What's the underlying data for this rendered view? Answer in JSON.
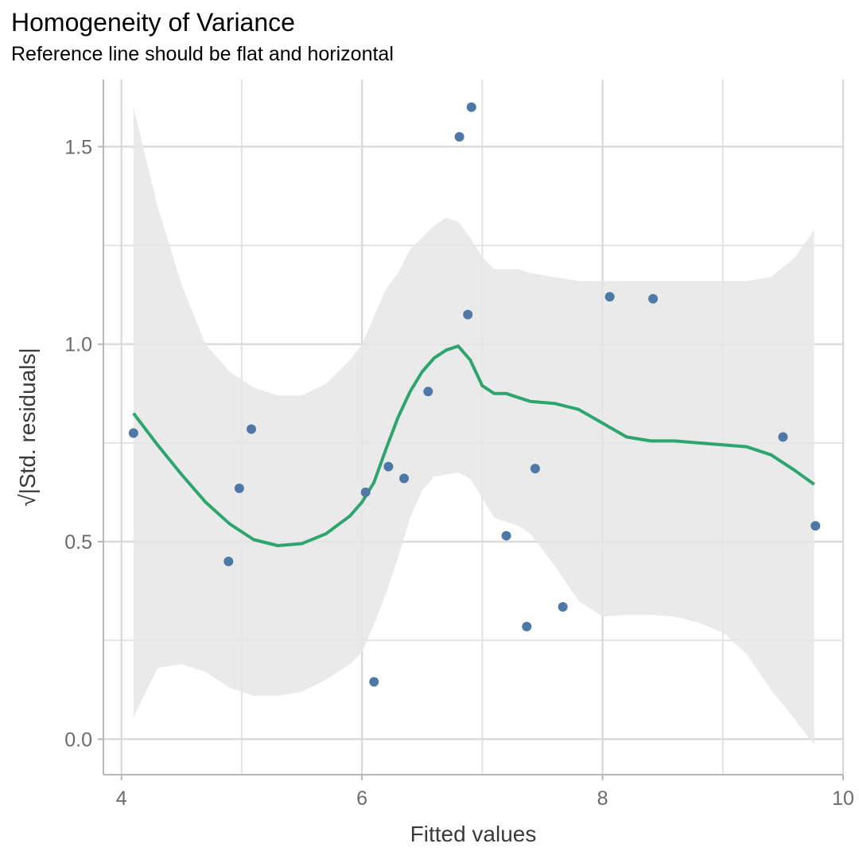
{
  "header": {
    "title": "Homogeneity of Variance",
    "subtitle": "Reference line should be flat and horizontal"
  },
  "chart_data": {
    "type": "scatter",
    "title": "Homogeneity of Variance",
    "subtitle": "Reference line should be flat and horizontal",
    "xlabel": "Fitted values",
    "ylabel": "√|Std. residuals|",
    "xlim": [
      3.85,
      10.0
    ],
    "ylim": [
      -0.09,
      1.67
    ],
    "x_ticks": [
      4,
      6,
      8,
      10
    ],
    "x_tick_labels": [
      "4",
      "6",
      "8",
      "10"
    ],
    "y_ticks": [
      0.0,
      0.5,
      1.0,
      1.5
    ],
    "y_tick_labels": [
      "0.0",
      "0.5",
      "1.0",
      "1.5"
    ],
    "x_minor": [
      5,
      7,
      9
    ],
    "y_minor": [
      0.25,
      0.75,
      1.25
    ],
    "grid": true,
    "points": {
      "color": "#4e79a7",
      "x": [
        4.1,
        4.89,
        4.98,
        5.08,
        6.03,
        6.1,
        6.22,
        6.35,
        6.55,
        6.81,
        6.88,
        6.91,
        7.2,
        7.37,
        7.44,
        7.67,
        8.06,
        8.42,
        9.5,
        9.77
      ],
      "y": [
        0.775,
        0.45,
        0.635,
        0.785,
        0.625,
        0.145,
        0.69,
        0.66,
        0.88,
        1.525,
        1.075,
        1.6,
        0.515,
        0.285,
        0.685,
        0.335,
        1.12,
        1.115,
        0.765,
        0.54
      ]
    },
    "smooth": {
      "color": "#2ea56f",
      "x": [
        4.1,
        4.3,
        4.5,
        4.7,
        4.9,
        5.1,
        5.3,
        5.5,
        5.7,
        5.9,
        6.0,
        6.1,
        6.2,
        6.3,
        6.4,
        6.5,
        6.6,
        6.7,
        6.8,
        6.9,
        7.0,
        7.1,
        7.2,
        7.3,
        7.4,
        7.6,
        7.8,
        8.0,
        8.2,
        8.4,
        8.6,
        8.8,
        9.0,
        9.2,
        9.4,
        9.6,
        9.76
      ],
      "y": [
        0.825,
        0.745,
        0.67,
        0.6,
        0.545,
        0.505,
        0.49,
        0.495,
        0.52,
        0.565,
        0.6,
        0.65,
        0.735,
        0.815,
        0.88,
        0.93,
        0.965,
        0.985,
        0.995,
        0.96,
        0.895,
        0.875,
        0.875,
        0.865,
        0.855,
        0.85,
        0.835,
        0.8,
        0.765,
        0.755,
        0.755,
        0.75,
        0.745,
        0.74,
        0.72,
        0.68,
        0.645
      ]
    },
    "ci_band": {
      "color": "#e6e6e6",
      "x": [
        4.1,
        4.3,
        4.5,
        4.7,
        4.9,
        5.1,
        5.3,
        5.5,
        5.7,
        5.9,
        6.0,
        6.1,
        6.2,
        6.3,
        6.4,
        6.5,
        6.6,
        6.7,
        6.8,
        6.9,
        7.0,
        7.1,
        7.2,
        7.3,
        7.4,
        7.6,
        7.8,
        8.0,
        8.2,
        8.4,
        8.6,
        8.8,
        9.0,
        9.2,
        9.4,
        9.6,
        9.76
      ],
      "upper": [
        1.6,
        1.35,
        1.15,
        1.0,
        0.93,
        0.89,
        0.87,
        0.87,
        0.9,
        0.96,
        1.0,
        1.07,
        1.14,
        1.18,
        1.24,
        1.27,
        1.3,
        1.32,
        1.31,
        1.27,
        1.22,
        1.19,
        1.19,
        1.19,
        1.18,
        1.17,
        1.16,
        1.16,
        1.16,
        1.16,
        1.16,
        1.16,
        1.16,
        1.16,
        1.17,
        1.22,
        1.29
      ],
      "lower": [
        0.055,
        0.18,
        0.19,
        0.17,
        0.13,
        0.11,
        0.11,
        0.12,
        0.15,
        0.19,
        0.22,
        0.29,
        0.37,
        0.46,
        0.56,
        0.63,
        0.665,
        0.67,
        0.675,
        0.66,
        0.61,
        0.56,
        0.55,
        0.54,
        0.52,
        0.44,
        0.35,
        0.31,
        0.315,
        0.315,
        0.31,
        0.295,
        0.27,
        0.215,
        0.125,
        0.05,
        -0.015
      ]
    }
  }
}
